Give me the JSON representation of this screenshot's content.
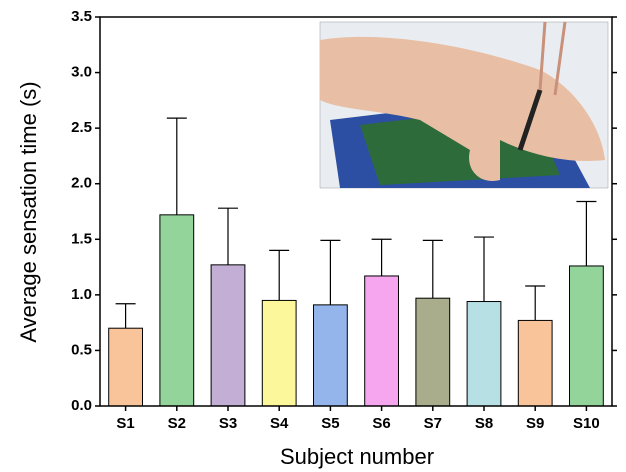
{
  "chart_data": {
    "type": "bar",
    "x_label": "Subject number",
    "y_label": "Average sensation time (s)",
    "categories": [
      "S1",
      "S2",
      "S3",
      "S4",
      "S5",
      "S6",
      "S7",
      "S8",
      "S9",
      "S10"
    ],
    "values": [
      0.7,
      1.72,
      1.27,
      0.95,
      0.91,
      1.17,
      0.97,
      0.94,
      0.77,
      1.26
    ],
    "errors": [
      0.22,
      0.87,
      0.51,
      0.45,
      0.58,
      0.33,
      0.52,
      0.58,
      0.31,
      0.58
    ],
    "colors": [
      "#f9c49a",
      "#93d49a",
      "#c3aed6",
      "#fbf79a",
      "#93b5ec",
      "#f6a6ef",
      "#a9ad8b",
      "#b7e0e4",
      "#f9c49a",
      "#93d49a"
    ],
    "ylim": [
      0,
      3.5
    ],
    "yticks": [
      {
        "value": 0,
        "label": "0.0"
      },
      0.5,
      {
        "value": 1,
        "label": "1.0"
      },
      1.5,
      {
        "value": 2,
        "label": "2.0"
      },
      2.5,
      {
        "value": 3,
        "label": "3.0"
      },
      3.5
    ],
    "grid": false
  }
}
